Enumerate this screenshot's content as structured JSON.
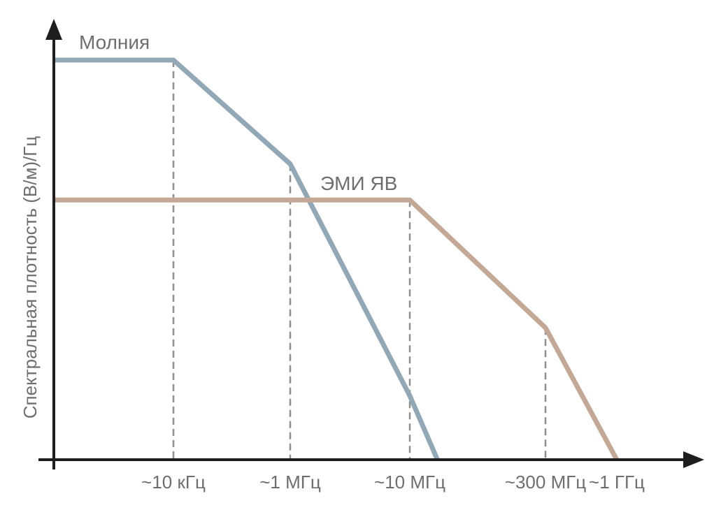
{
  "chart_data": {
    "type": "line",
    "ylabel": "Спектральная плотность (В/м)/Гц",
    "xlabel": "",
    "x_scale": "log",
    "y_scale": "log",
    "grid": false,
    "categories": [
      "~10 кГц",
      "~1 МГц",
      "~10 МГц",
      "~300 МГц",
      "~1 ГГц"
    ],
    "x_ticks_hz": [
      10000,
      1000000,
      10000000,
      300000000,
      1000000000
    ],
    "series": [
      {
        "name": "Молния",
        "color": "#93a8b6",
        "points": [
          {
            "x": 0,
            "y": 1.0
          },
          {
            "x": 10000,
            "y": 1.0
          },
          {
            "x": 1000000,
            "y": 0.74
          },
          {
            "x": 10000000,
            "y": 0.16
          },
          {
            "x": 20000000,
            "y": 0.0
          }
        ]
      },
      {
        "name": "ЭМИ ЯВ",
        "color": "#c3a895",
        "points": [
          {
            "x": 0,
            "y": 0.65
          },
          {
            "x": 10000000,
            "y": 0.65
          },
          {
            "x": 300000000,
            "y": 0.33
          },
          {
            "x": 1000000000,
            "y": 0.0
          }
        ]
      }
    ]
  }
}
